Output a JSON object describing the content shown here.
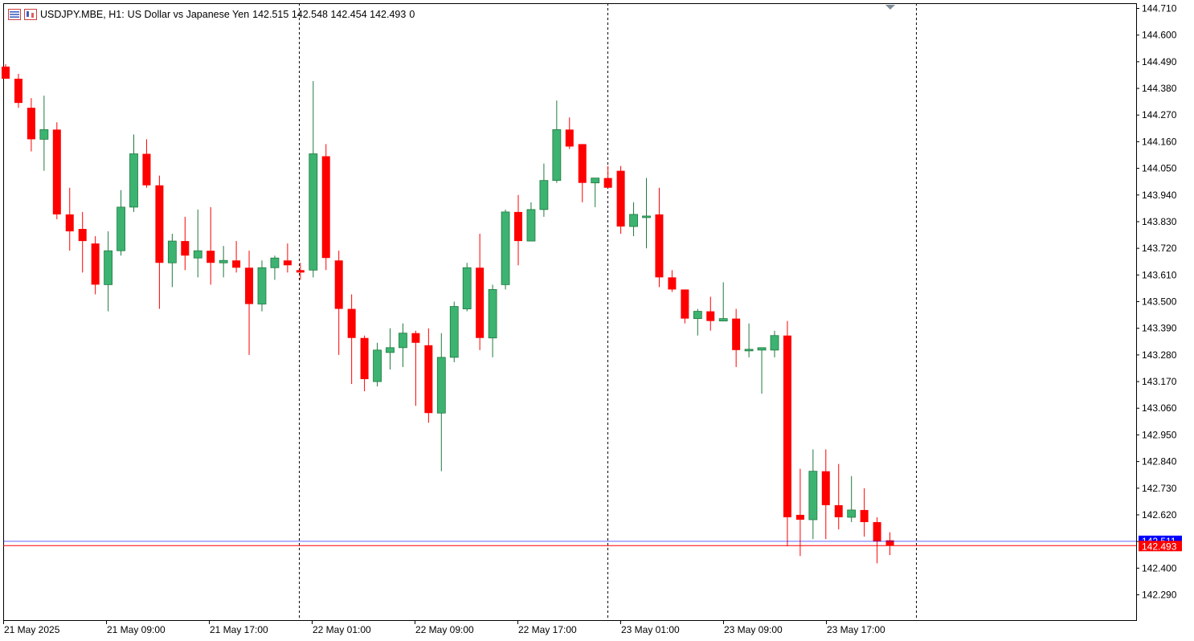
{
  "header": {
    "symbol": "USDJPY.MBE, H1:",
    "description": "US Dollar vs Japanese Yen",
    "ohlc": "142.515 142.548 142.454 142.493",
    "volume": "0",
    "icons": [
      "list-icon",
      "chart-type-icon"
    ]
  },
  "price_axis": {
    "labels": [
      "144.710",
      "144.600",
      "144.490",
      "144.380",
      "144.270",
      "144.160",
      "144.050",
      "143.940",
      "143.830",
      "143.720",
      "143.610",
      "143.500",
      "143.390",
      "143.280",
      "143.170",
      "143.060",
      "142.950",
      "142.840",
      "142.730",
      "142.620",
      "142.510",
      "142.400",
      "142.290"
    ],
    "bid_label": "142.493",
    "ask_label": "142.511",
    "bid_color": "#ff0000",
    "ask_color": "#0000ff"
  },
  "time_axis": {
    "labels": [
      "21 May 2025",
      "21 May 09:00",
      "21 May 17:00",
      "22 May 01:00",
      "22 May 09:00",
      "22 May 17:00",
      "23 May 01:00",
      "23 May 09:00",
      "23 May 17:00"
    ]
  },
  "colors": {
    "bull": "#3cb371",
    "bear": "#ff0000",
    "grid": "#000000"
  },
  "chart_data": {
    "type": "candlestick",
    "symbol": "USDJPY.MBE",
    "timeframe": "H1",
    "ylim": [
      142.2,
      144.73
    ],
    "bid": 142.493,
    "ask": 142.511,
    "candles": [
      {
        "o": 144.47,
        "h": 144.48,
        "l": 144.42,
        "c": 144.42
      },
      {
        "o": 144.42,
        "h": 144.44,
        "l": 144.3,
        "c": 144.32
      },
      {
        "o": 144.3,
        "h": 144.34,
        "l": 144.12,
        "c": 144.17
      },
      {
        "o": 144.17,
        "h": 144.35,
        "l": 144.04,
        "c": 144.21
      },
      {
        "o": 144.21,
        "h": 144.24,
        "l": 143.84,
        "c": 143.86
      },
      {
        "o": 143.86,
        "h": 143.97,
        "l": 143.71,
        "c": 143.79
      },
      {
        "o": 143.8,
        "h": 143.87,
        "l": 143.62,
        "c": 143.75
      },
      {
        "o": 143.74,
        "h": 143.77,
        "l": 143.53,
        "c": 143.57
      },
      {
        "o": 143.57,
        "h": 143.79,
        "l": 143.46,
        "c": 143.71
      },
      {
        "o": 143.71,
        "h": 143.96,
        "l": 143.69,
        "c": 143.89
      },
      {
        "o": 143.89,
        "h": 144.19,
        "l": 143.87,
        "c": 144.11
      },
      {
        "o": 144.11,
        "h": 144.17,
        "l": 143.97,
        "c": 143.98
      },
      {
        "o": 143.98,
        "h": 144.02,
        "l": 143.47,
        "c": 143.66
      },
      {
        "o": 143.66,
        "h": 143.78,
        "l": 143.56,
        "c": 143.75
      },
      {
        "o": 143.75,
        "h": 143.85,
        "l": 143.63,
        "c": 143.69
      },
      {
        "o": 143.68,
        "h": 143.88,
        "l": 143.6,
        "c": 143.71
      },
      {
        "o": 143.71,
        "h": 143.89,
        "l": 143.57,
        "c": 143.66
      },
      {
        "o": 143.66,
        "h": 143.73,
        "l": 143.6,
        "c": 143.67
      },
      {
        "o": 143.67,
        "h": 143.75,
        "l": 143.62,
        "c": 143.64
      },
      {
        "o": 143.64,
        "h": 143.71,
        "l": 143.28,
        "c": 143.49
      },
      {
        "o": 143.49,
        "h": 143.67,
        "l": 143.46,
        "c": 143.64
      },
      {
        "o": 143.64,
        "h": 143.69,
        "l": 143.59,
        "c": 143.68
      },
      {
        "o": 143.67,
        "h": 143.74,
        "l": 143.62,
        "c": 143.65
      },
      {
        "o": 143.63,
        "h": 143.66,
        "l": 143.59,
        "c": 143.62
      },
      {
        "o": 143.63,
        "h": 144.41,
        "l": 143.6,
        "c": 144.11
      },
      {
        "o": 144.1,
        "h": 144.15,
        "l": 143.63,
        "c": 143.68
      },
      {
        "o": 143.67,
        "h": 143.71,
        "l": 143.28,
        "c": 143.47
      },
      {
        "o": 143.47,
        "h": 143.53,
        "l": 143.16,
        "c": 143.35
      },
      {
        "o": 143.35,
        "h": 143.36,
        "l": 143.13,
        "c": 143.18
      },
      {
        "o": 143.17,
        "h": 143.33,
        "l": 143.15,
        "c": 143.3
      },
      {
        "o": 143.29,
        "h": 143.39,
        "l": 143.22,
        "c": 143.31
      },
      {
        "o": 143.31,
        "h": 143.41,
        "l": 143.23,
        "c": 143.37
      },
      {
        "o": 143.37,
        "h": 143.38,
        "l": 143.07,
        "c": 143.33
      },
      {
        "o": 143.32,
        "h": 143.39,
        "l": 143.0,
        "c": 143.04
      },
      {
        "o": 143.04,
        "h": 143.37,
        "l": 142.8,
        "c": 143.27
      },
      {
        "o": 143.27,
        "h": 143.5,
        "l": 143.25,
        "c": 143.48
      },
      {
        "o": 143.47,
        "h": 143.66,
        "l": 143.46,
        "c": 143.64
      },
      {
        "o": 143.64,
        "h": 143.78,
        "l": 143.3,
        "c": 143.35
      },
      {
        "o": 143.35,
        "h": 143.57,
        "l": 143.27,
        "c": 143.55
      },
      {
        "o": 143.57,
        "h": 143.88,
        "l": 143.55,
        "c": 143.87
      },
      {
        "o": 143.87,
        "h": 143.94,
        "l": 143.65,
        "c": 143.75
      },
      {
        "o": 143.75,
        "h": 143.91,
        "l": 143.75,
        "c": 143.88
      },
      {
        "o": 143.88,
        "h": 144.07,
        "l": 143.85,
        "c": 144.0
      },
      {
        "o": 144.0,
        "h": 144.33,
        "l": 143.99,
        "c": 144.21
      },
      {
        "o": 144.21,
        "h": 144.26,
        "l": 144.13,
        "c": 144.14
      },
      {
        "o": 144.15,
        "h": 144.15,
        "l": 143.91,
        "c": 143.99
      },
      {
        "o": 143.99,
        "h": 144.01,
        "l": 143.89,
        "c": 144.01
      },
      {
        "o": 144.01,
        "h": 144.06,
        "l": 143.97,
        "c": 143.97
      },
      {
        "o": 144.04,
        "h": 144.06,
        "l": 143.78,
        "c": 143.81
      },
      {
        "o": 143.81,
        "h": 143.91,
        "l": 143.77,
        "c": 143.86
      },
      {
        "o": 143.85,
        "h": 144.01,
        "l": 143.72,
        "c": 143.85
      },
      {
        "o": 143.86,
        "h": 143.97,
        "l": 143.56,
        "c": 143.6
      },
      {
        "o": 143.6,
        "h": 143.63,
        "l": 143.54,
        "c": 143.55
      },
      {
        "o": 143.55,
        "h": 143.55,
        "l": 143.41,
        "c": 143.43
      },
      {
        "o": 143.43,
        "h": 143.47,
        "l": 143.36,
        "c": 143.46
      },
      {
        "o": 143.46,
        "h": 143.52,
        "l": 143.38,
        "c": 143.42
      },
      {
        "o": 143.42,
        "h": 143.58,
        "l": 143.42,
        "c": 143.43
      },
      {
        "o": 143.43,
        "h": 143.47,
        "l": 143.23,
        "c": 143.3
      },
      {
        "o": 143.3,
        "h": 143.41,
        "l": 143.27,
        "c": 143.3
      },
      {
        "o": 143.3,
        "h": 143.31,
        "l": 143.12,
        "c": 143.31
      },
      {
        "o": 143.3,
        "h": 143.38,
        "l": 143.27,
        "c": 143.36
      },
      {
        "o": 143.36,
        "h": 143.42,
        "l": 142.49,
        "c": 142.61
      },
      {
        "o": 142.62,
        "h": 142.81,
        "l": 142.45,
        "c": 142.6
      },
      {
        "o": 142.6,
        "h": 142.89,
        "l": 142.52,
        "c": 142.8
      },
      {
        "o": 142.8,
        "h": 142.89,
        "l": 142.52,
        "c": 142.66
      },
      {
        "o": 142.66,
        "h": 142.83,
        "l": 142.56,
        "c": 142.61
      },
      {
        "o": 142.61,
        "h": 142.78,
        "l": 142.59,
        "c": 142.64
      },
      {
        "o": 142.64,
        "h": 142.73,
        "l": 142.53,
        "c": 142.59
      },
      {
        "o": 142.59,
        "h": 142.61,
        "l": 142.42,
        "c": 142.51
      },
      {
        "o": 142.515,
        "h": 142.548,
        "l": 142.454,
        "c": 142.493
      }
    ]
  }
}
